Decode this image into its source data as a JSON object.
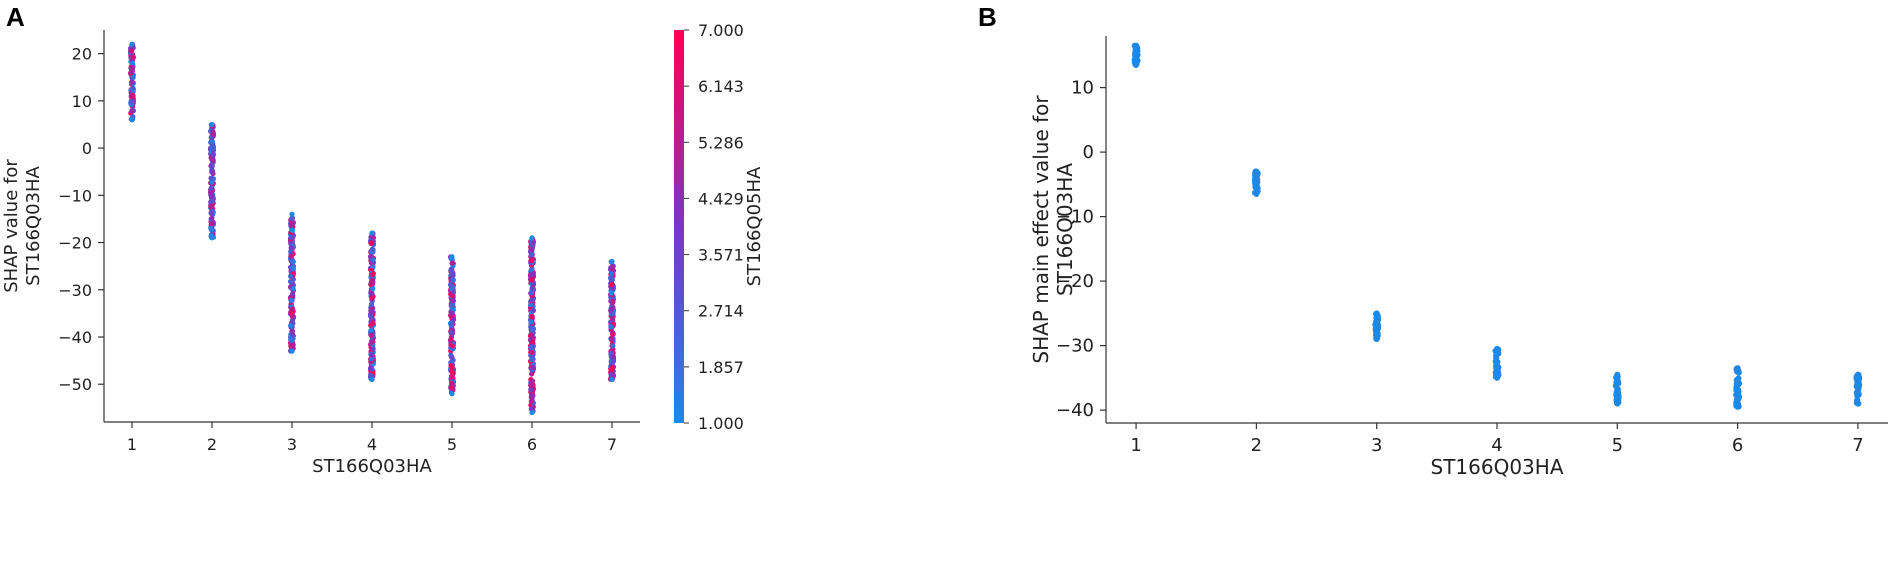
{
  "chart_data": [
    {
      "panel": "A",
      "type": "scatter",
      "title": "",
      "xlabel": "ST166Q03HA",
      "ylabel": "SHAP value for\nST166Q03HA",
      "x_ticks": [
        1,
        2,
        3,
        4,
        5,
        6,
        7
      ],
      "y_ticks": [
        20,
        10,
        0,
        -10,
        -20,
        -30,
        -40,
        -50
      ],
      "ylim": [
        -58,
        25
      ],
      "xlim": [
        0.65,
        7.35
      ],
      "colorbar": {
        "label": "ST166Q05HA",
        "ticks": [
          "7.000",
          "6.143",
          "5.286",
          "4.429",
          "3.571",
          "2.714",
          "1.857",
          "1.000"
        ],
        "range": [
          1.0,
          7.0
        ],
        "colors": [
          "#1e88e5",
          "#7c35c4",
          "#ff0052"
        ]
      },
      "point_ranges": [
        {
          "x": 1,
          "y_min": 6,
          "y_max": 22,
          "color_min": 1,
          "color_max": 7
        },
        {
          "x": 2,
          "y_min": -19,
          "y_max": 5,
          "color_min": 1,
          "color_max": 6
        },
        {
          "x": 3,
          "y_min": -43,
          "y_max": -14,
          "color_min": 1,
          "color_max": 7
        },
        {
          "x": 4,
          "y_min": -49,
          "y_max": -18,
          "color_min": 1,
          "color_max": 7
        },
        {
          "x": 5,
          "y_min": -52,
          "y_max": -23,
          "color_min": 1,
          "color_max": 7
        },
        {
          "x": 6,
          "y_min": -56,
          "y_max": -19,
          "color_min": 1,
          "color_max": 7
        },
        {
          "x": 7,
          "y_min": -49,
          "y_max": -24,
          "color_min": 1,
          "color_max": 7
        }
      ]
    },
    {
      "panel": "B",
      "type": "scatter",
      "title": "",
      "xlabel": "ST166Q03HA",
      "ylabel": "SHAP main effect value for\nST166Q03HA",
      "x_ticks": [
        1,
        2,
        3,
        4,
        5,
        6,
        7
      ],
      "y_ticks": [
        10,
        0,
        -10,
        -20,
        -30,
        -40
      ],
      "ylim": [
        -42,
        18
      ],
      "xlim": [
        0.75,
        7.25
      ],
      "point_color": "#1e88e5",
      "point_ranges": [
        {
          "x": 1,
          "y_min": 13.5,
          "y_max": 16.5
        },
        {
          "x": 2,
          "y_min": -6.5,
          "y_max": -3
        },
        {
          "x": 3,
          "y_min": -29,
          "y_max": -25
        },
        {
          "x": 4,
          "y_min": -35,
          "y_max": -30.5
        },
        {
          "x": 5,
          "y_min": -39,
          "y_max": -34.5
        },
        {
          "x": 6,
          "y_min": -39.5,
          "y_max": -33.5
        },
        {
          "x": 7,
          "y_min": -39,
          "y_max": -34.5
        }
      ]
    }
  ],
  "panels": {
    "a_label": "A",
    "b_label": "B"
  }
}
